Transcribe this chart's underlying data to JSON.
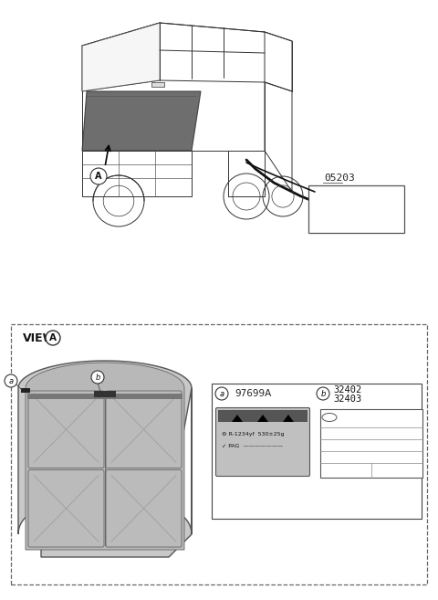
{
  "bg_color": "#ffffff",
  "part_05203": "05203",
  "part_97699A": "97699A",
  "part_32402": "32402",
  "part_32403": "32403",
  "view_label": "VIEW",
  "A": "A",
  "a": "a",
  "b": "b",
  "car_line_color": "#333333",
  "dashed_color": "#666666",
  "hood_fill": "#d0d0d0",
  "hood_edge": "#555555",
  "label_dark": "#222222"
}
